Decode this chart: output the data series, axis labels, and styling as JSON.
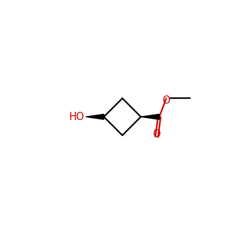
{
  "background_color": "#ffffff",
  "bond_color": "#000000",
  "red_color": "#cc0000",
  "line_width": 1.6,
  "figsize": [
    3.6,
    3.6
  ],
  "dpi": 100,
  "ho_text": "HO",
  "ho_fontsize": 10.5,
  "o_double_text": "O",
  "o_double_fontsize": 10.5,
  "o_single_text": "O",
  "o_single_fontsize": 10.5
}
